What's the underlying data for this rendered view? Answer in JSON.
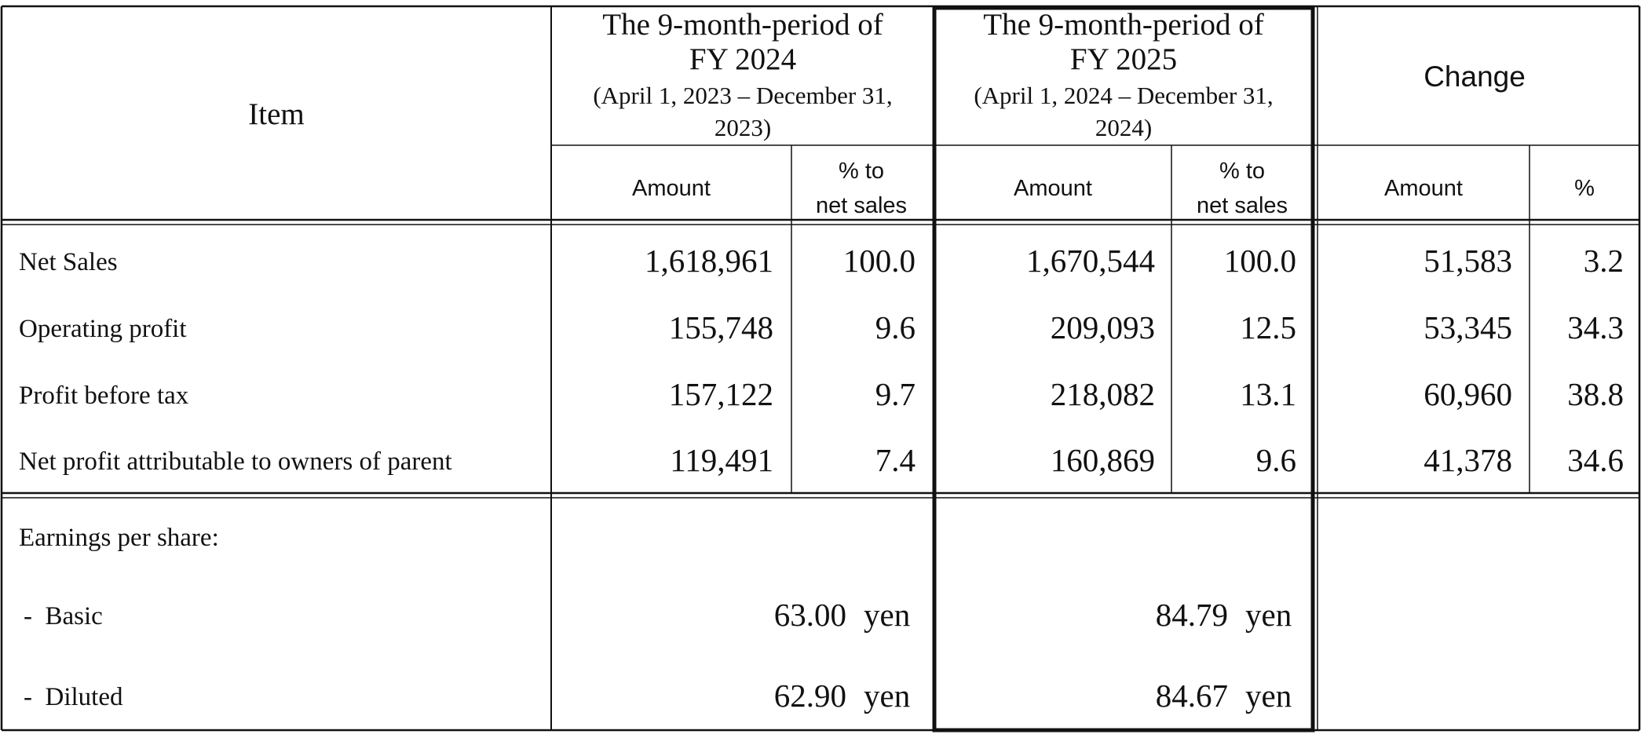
{
  "header": {
    "item_label": "Item",
    "period_prev": {
      "title_line1": "The 9-month-period of",
      "title_line2": "FY 2024",
      "range_line1": "(April 1, 2023 – December 31,",
      "range_line2": "2023)",
      "amount_label": "Amount",
      "pct_label_line1": "% to",
      "pct_label_line2": "net sales"
    },
    "period_curr": {
      "title_line1": "The 9-month-period of",
      "title_line2": "FY 2025",
      "range_line1": "(April 1, 2024 – December 31,",
      "range_line2": "2024)",
      "amount_label": "Amount",
      "pct_label_line1": "% to",
      "pct_label_line2": "net sales"
    },
    "change": {
      "title": "Change",
      "amount_label": "Amount",
      "pct_label": "%"
    }
  },
  "rows": [
    {
      "item": "Net Sales",
      "prev_amount": "1,618,961",
      "prev_pct": "100.0",
      "curr_amount": "1,670,544",
      "curr_pct": "100.0",
      "change_amount": "51,583",
      "change_pct": "3.2"
    },
    {
      "item": "Operating profit",
      "prev_amount": "155,748",
      "prev_pct": "9.6",
      "curr_amount": "209,093",
      "curr_pct": "12.5",
      "change_amount": "53,345",
      "change_pct": "34.3"
    },
    {
      "item": "Profit before tax",
      "prev_amount": "157,122",
      "prev_pct": "9.7",
      "curr_amount": "218,082",
      "curr_pct": "13.1",
      "change_amount": "60,960",
      "change_pct": "38.8"
    },
    {
      "item": "Net profit attributable to owners of parent",
      "prev_amount": "119,491",
      "prev_pct": "7.4",
      "curr_amount": "160,869",
      "curr_pct": "9.6",
      "change_amount": "41,378",
      "change_pct": "34.6"
    }
  ],
  "eps": {
    "heading": "Earnings per share:",
    "basic_label": "-  Basic",
    "diluted_label": "-  Diluted",
    "basic_prev": "63.00",
    "basic_curr": "84.79",
    "diluted_prev": "62.90",
    "diluted_curr": "84.67",
    "unit": "yen"
  }
}
